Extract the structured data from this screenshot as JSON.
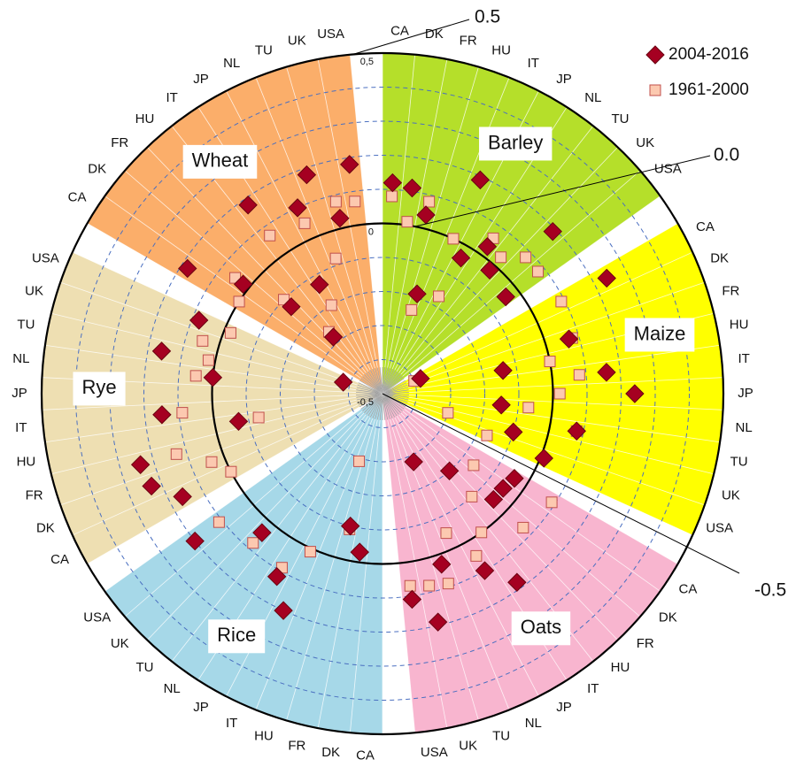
{
  "chart_data": {
    "type": "polar",
    "groups": [
      {
        "name": "Barley",
        "color": "#b5df2a"
      },
      {
        "name": "Maize",
        "color": "#ffff00"
      },
      {
        "name": "Oats",
        "color": "#f8b5cf"
      },
      {
        "name": "Rice",
        "color": "#a6d8e8"
      },
      {
        "name": "Rye",
        "color": "#eedfb2"
      },
      {
        "name": "Wheat",
        "color": "#fbae6a"
      }
    ],
    "categories": [
      "CA",
      "DK",
      "FR",
      "HU",
      "IT",
      "JP",
      "NL",
      "TU",
      "UK",
      "USA",
      "CA",
      "DK",
      "FR",
      "HU",
      "IT",
      "JP",
      "NL",
      "TU",
      "UK",
      "USA",
      "CA",
      "DK",
      "FR",
      "HU",
      "IT",
      "JP",
      "NL",
      "TU",
      "UK",
      "USA",
      "CA",
      "DK",
      "FR",
      "HU",
      "IT",
      "JP",
      "NL",
      "TU",
      "UK",
      "USA",
      "CA",
      "DK",
      "FR",
      "HU",
      "IT",
      "JP",
      "NL",
      "TU",
      "UK",
      "USA",
      "CA",
      "DK",
      "FR",
      "HU",
      "IT",
      "JP",
      "NL",
      "TU",
      "UK",
      "USA"
    ],
    "series": [
      {
        "name": "2004-2016",
        "color": "#a50021",
        "marker": "diamond",
        "values": [
          0.12,
          0.11,
          0.04,
          -0.19,
          0.19,
          -0.04,
          0.03,
          -0.02,
          0.19,
          -0.04,
          0.24,
          -0.38,
          0.07,
          -0.14,
          0.16,
          0.24,
          -0.15,
          0.08,
          -0.1,
          0.01,
          -0.04,
          -0.05,
          -0.05,
          -0.2,
          0.18,
          0.1,
          -0.28,
          0.03,
          0.19,
          0.11,
          null,
          -0.03,
          -0.1,
          null,
          0.2,
          0.12,
          null,
          0.04,
          null,
          0.2,
          0.16,
          0.23,
          0.24,
          -0.07,
          0.15,
          null,
          0.0,
          0.16,
          -0.38,
          0.08,
          0.18,
          0.02,
          -0.13,
          -0.28,
          0.18,
          -0.13,
          0.1,
          0.18,
          0.03,
          0.18
        ]
      },
      {
        "name": "1961-2000",
        "color": "#fcc9b0",
        "marker": "square",
        "values": [
          0.08,
          0.01,
          0.08,
          -0.24,
          0.0,
          -0.17,
          0.06,
          0.03,
          0.08,
          0.08,
          0.09,
          -0.4,
          0.08,
          0.0,
          0.08,
          0.02,
          -0.07,
          0.08,
          -0.3,
          -0.17,
          0.09,
          -0.16,
          0.07,
          -0.1,
          0.0,
          0.05,
          -0.05,
          0.09,
          0.08,
          0.07,
          null,
          null,
          -0.09,
          -0.29,
          0.01,
          0.09,
          null,
          0.08,
          null,
          0.11,
          0.0,
          0.04,
          0.13,
          -0.13,
          0.09,
          null,
          0.05,
          0.02,
          0.05,
          -0.02,
          0.0,
          0.05,
          -0.1,
          -0.26,
          0.07,
          -0.2,
          0.05,
          -0.08,
          0.08,
          0.07
        ]
      }
    ],
    "ylim": [
      -0.5,
      0.5
    ],
    "yticks": [
      {
        "value": -0.5,
        "label": "-0,5"
      },
      0,
      {
        "value": 0.5,
        "label": "0,5"
      }
    ],
    "minor_yticks": [
      -0.4,
      -0.3,
      -0.2,
      -0.1,
      0.1,
      0.2,
      0.3,
      0.4
    ],
    "grid": true,
    "legend": "top-right",
    "annotations": [
      {
        "text": "0.5",
        "value": 0.5
      },
      {
        "text": "0.0",
        "value": 0
      },
      {
        "text": "-0.5",
        "value": -0.5
      }
    ]
  }
}
